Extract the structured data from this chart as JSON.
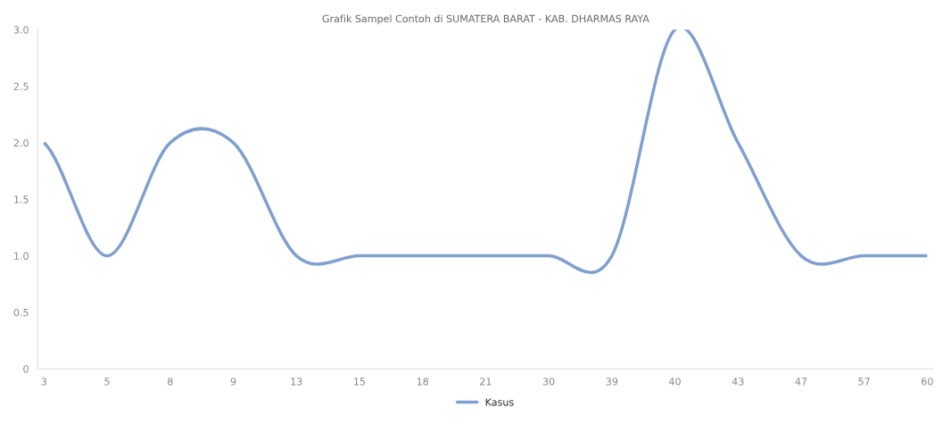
{
  "chart_data": {
    "type": "line",
    "title": "Grafik Sampel Contoh di SUMATERA BARAT - KAB. DHARMAS RAYA",
    "categories": [
      "3",
      "5",
      "8",
      "9",
      "13",
      "15",
      "18",
      "21",
      "30",
      "39",
      "40",
      "43",
      "47",
      "57",
      "60"
    ],
    "series": [
      {
        "name": "Kasus",
        "color": "#7f9fcf",
        "values": [
          2,
          1,
          2,
          2,
          1,
          1,
          1,
          1,
          1,
          1,
          3,
          2,
          1,
          1,
          1
        ]
      }
    ],
    "ylim": [
      0,
      3
    ],
    "yticks": [
      {
        "value": 0,
        "label": "0"
      },
      {
        "value": 0.5,
        "label": "0.5"
      },
      {
        "value": 1,
        "label": "1.0"
      },
      {
        "value": 1.5,
        "label": "1.5"
      },
      {
        "value": 2,
        "label": "2.0"
      },
      {
        "value": 2.5,
        "label": "2.5"
      },
      {
        "value": 3,
        "label": "3.0"
      }
    ],
    "legend": "bottom",
    "grid": false,
    "marker": "none",
    "line_style": "solid"
  }
}
